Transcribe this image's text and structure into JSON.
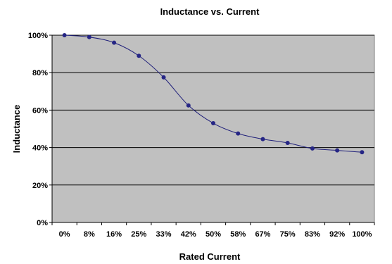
{
  "chart_data": {
    "type": "line",
    "title": "Inductance vs. Current",
    "xlabel": "Rated Current",
    "ylabel": "Inductance",
    "categories": [
      "0%",
      "8%",
      "16%",
      "25%",
      "33%",
      "42%",
      "50%",
      "58%",
      "67%",
      "75%",
      "83%",
      "92%",
      "100%"
    ],
    "series": [
      {
        "values": [
          100,
          99,
          96,
          89,
          77.5,
          62.5,
          53,
          47.5,
          44.5,
          42.5,
          39.5,
          38.5,
          37.5
        ]
      }
    ],
    "ylim": [
      0,
      100
    ],
    "yticks": [
      "0%",
      "20%",
      "40%",
      "60%",
      "80%",
      "100%"
    ],
    "grid": true,
    "legend": "none",
    "colors": {
      "plot_background": "#c0c0c0",
      "line": "#1f1f7a",
      "marker": "#262685",
      "gridline": "#000000"
    }
  }
}
